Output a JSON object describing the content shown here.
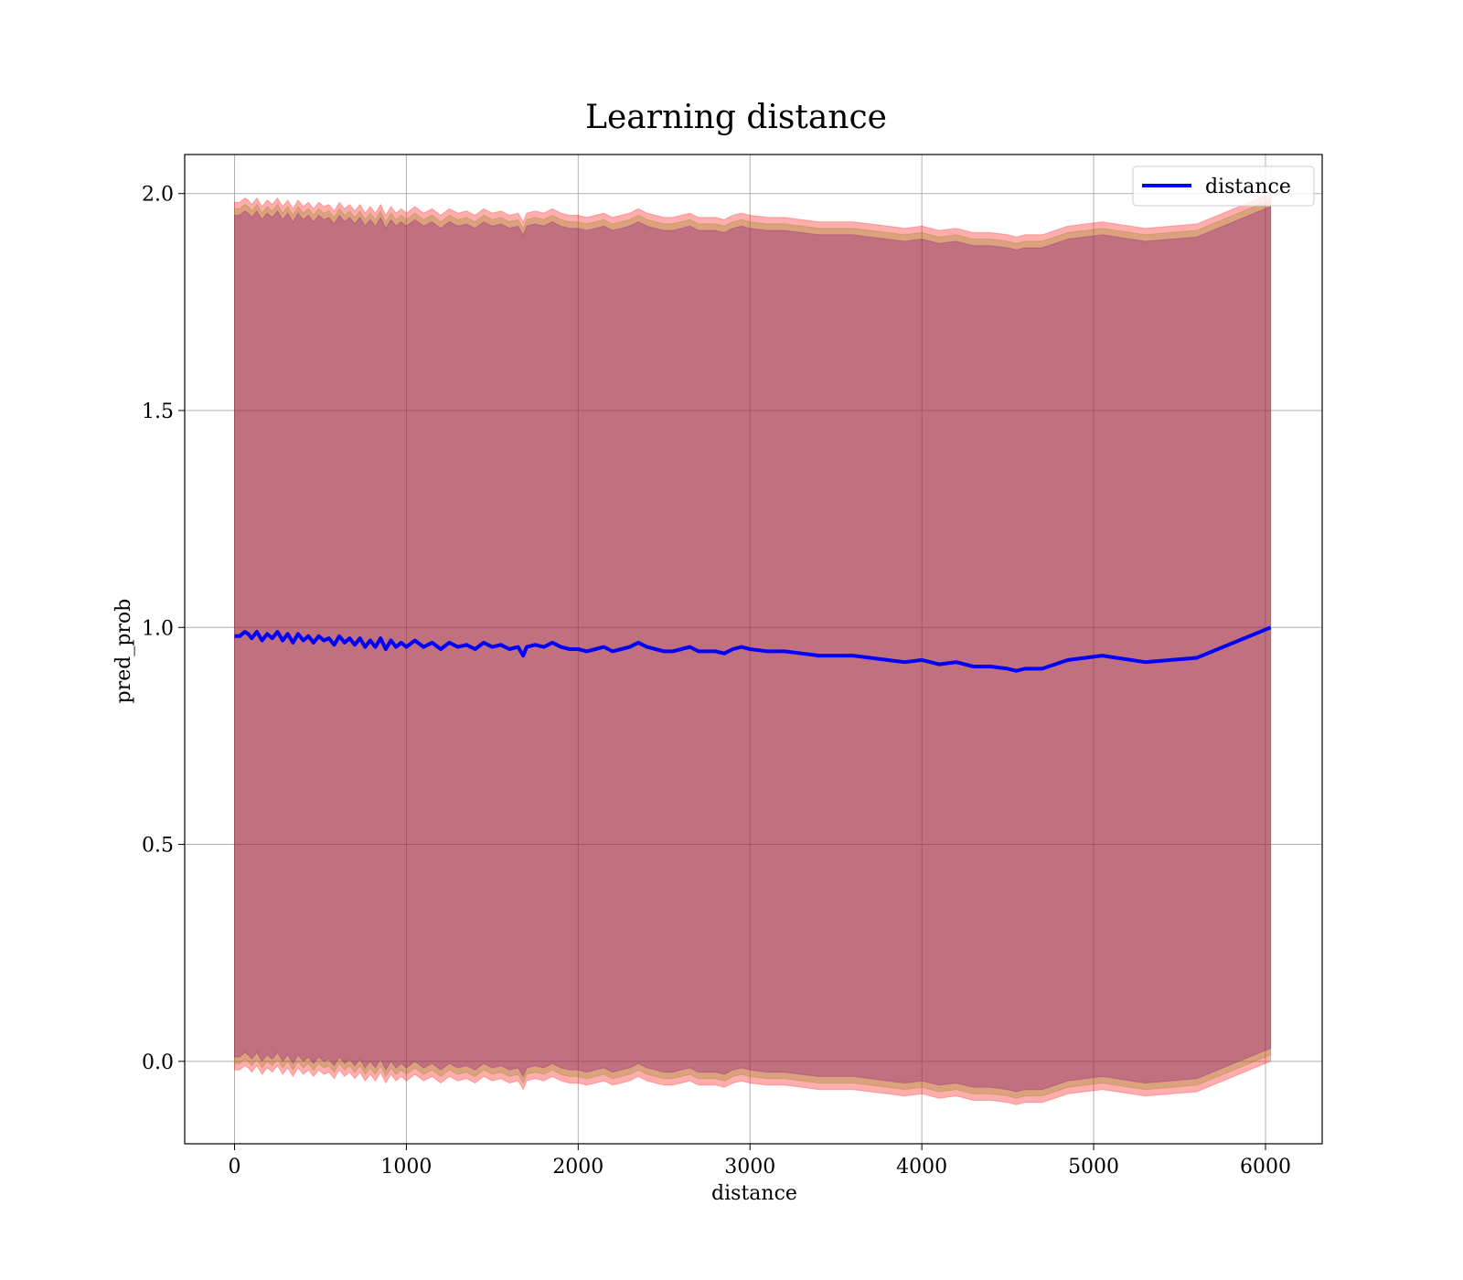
{
  "chart_data": {
    "type": "line",
    "title": "Learning distance",
    "xlabel": "distance",
    "ylabel": "pred_prob",
    "xlim": [
      -290,
      6330
    ],
    "ylim": [
      -0.19,
      2.09
    ],
    "xticks": [
      0,
      1000,
      2000,
      3000,
      4000,
      5000,
      6000
    ],
    "yticks": [
      0.0,
      0.5,
      1.0,
      1.5,
      2.0
    ],
    "xtick_labels": [
      "0",
      "1000",
      "2000",
      "3000",
      "4000",
      "5000",
      "6000"
    ],
    "ytick_labels": [
      "0.0",
      "0.5",
      "1.0",
      "1.5",
      "2.0"
    ],
    "grid": true,
    "legend": {
      "position": "top-right"
    },
    "series": [
      {
        "name": "distance",
        "color": "#0000ff",
        "x": [
          0,
          30,
          60,
          80,
          100,
          130,
          160,
          190,
          220,
          250,
          280,
          310,
          340,
          370,
          400,
          430,
          460,
          490,
          520,
          550,
          580,
          610,
          640,
          670,
          700,
          730,
          760,
          790,
          820,
          850,
          880,
          910,
          940,
          970,
          1000,
          1050,
          1100,
          1150,
          1200,
          1250,
          1300,
          1350,
          1400,
          1450,
          1500,
          1550,
          1600,
          1650,
          1680,
          1700,
          1750,
          1800,
          1850,
          1900,
          1950,
          2000,
          2050,
          2100,
          2150,
          2200,
          2250,
          2300,
          2350,
          2400,
          2450,
          2500,
          2550,
          2600,
          2650,
          2700,
          2750,
          2800,
          2850,
          2900,
          2950,
          3000,
          3100,
          3200,
          3300,
          3400,
          3500,
          3600,
          3700,
          3800,
          3900,
          4000,
          4100,
          4200,
          4300,
          4400,
          4500,
          4550,
          4600,
          4700,
          4850,
          5050,
          5300,
          5600,
          6030
        ],
        "values": [
          0.98,
          0.98,
          0.99,
          0.985,
          0.975,
          0.99,
          0.97,
          0.985,
          0.975,
          0.99,
          0.97,
          0.985,
          0.965,
          0.985,
          0.97,
          0.98,
          0.965,
          0.98,
          0.97,
          0.975,
          0.96,
          0.98,
          0.965,
          0.975,
          0.96,
          0.975,
          0.955,
          0.97,
          0.955,
          0.975,
          0.95,
          0.97,
          0.955,
          0.965,
          0.955,
          0.97,
          0.955,
          0.965,
          0.95,
          0.965,
          0.955,
          0.96,
          0.95,
          0.965,
          0.955,
          0.96,
          0.95,
          0.955,
          0.935,
          0.955,
          0.96,
          0.955,
          0.965,
          0.955,
          0.95,
          0.95,
          0.945,
          0.95,
          0.955,
          0.945,
          0.95,
          0.955,
          0.965,
          0.955,
          0.95,
          0.945,
          0.945,
          0.95,
          0.955,
          0.945,
          0.945,
          0.945,
          0.94,
          0.95,
          0.955,
          0.95,
          0.945,
          0.945,
          0.94,
          0.935,
          0.935,
          0.935,
          0.93,
          0.925,
          0.92,
          0.925,
          0.915,
          0.92,
          0.91,
          0.91,
          0.905,
          0.9,
          0.905,
          0.905,
          0.925,
          0.935,
          0.92,
          0.93,
          1.0
        ]
      }
    ],
    "bands": [
      {
        "name": "",
        "color": "#ff0000",
        "opacity": 0.32,
        "offset": 0.0
      },
      {
        "name": "",
        "color": "#808000",
        "opacity": 0.28,
        "offset": 0.015
      },
      {
        "name": "",
        "color": "#800080",
        "opacity": 0.3,
        "offset": 0.03
      }
    ]
  }
}
